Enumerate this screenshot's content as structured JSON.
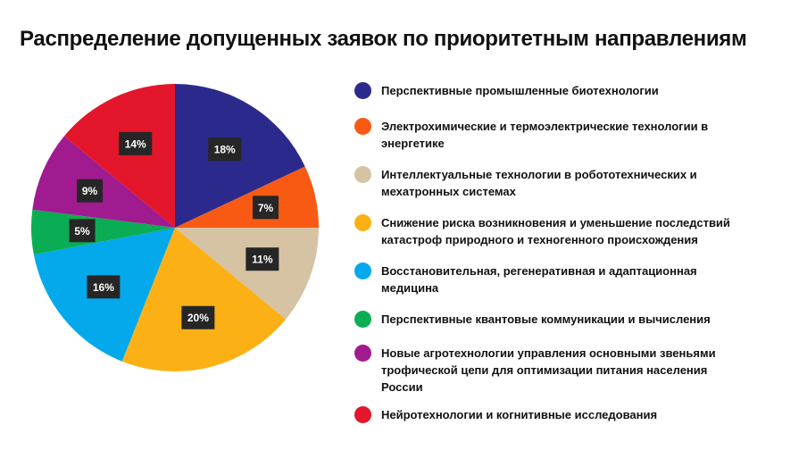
{
  "chart_data": {
    "type": "pie",
    "title": "Распределение допущенных заявок по приоритетным направлениям",
    "legend_position": "right",
    "slices": [
      {
        "label": "Перспективные промышленные биотехнологии",
        "value": 18,
        "value_label": "18%",
        "color": "#2b2a8c"
      },
      {
        "label": "Электрохимические и термоэлектрические технологии в энергетике",
        "value": 7,
        "value_label": "7%",
        "color": "#f85a14"
      },
      {
        "label": "Интеллектуальные технологии в робототехнических и мехатронных системах",
        "value": 11,
        "value_label": "11%",
        "color": "#d5c3a4"
      },
      {
        "label": "Снижение риска возникновения и уменьшение последствий катастроф природного и техногенного происхождения",
        "value": 20,
        "value_label": "20%",
        "color": "#fbb116"
      },
      {
        "label": "Восстановительная, регенеративная и адаптационная медицина",
        "value": 16,
        "value_label": "16%",
        "color": "#03a9ea"
      },
      {
        "label": "Перспективные квантовые коммуникации и вычисления",
        "value": 5,
        "value_label": "5%",
        "color": "#0aad53"
      },
      {
        "label": "Новые агротехнологии управления основными звеньями трофической цепи для оптимизации питания населения России",
        "value": 9,
        "value_label": "9%",
        "color": "#a01b8f"
      },
      {
        "label": "Нейротехнологии и когнитивные исследования",
        "value": 14,
        "value_label": "14%",
        "color": "#e3162b"
      }
    ]
  }
}
